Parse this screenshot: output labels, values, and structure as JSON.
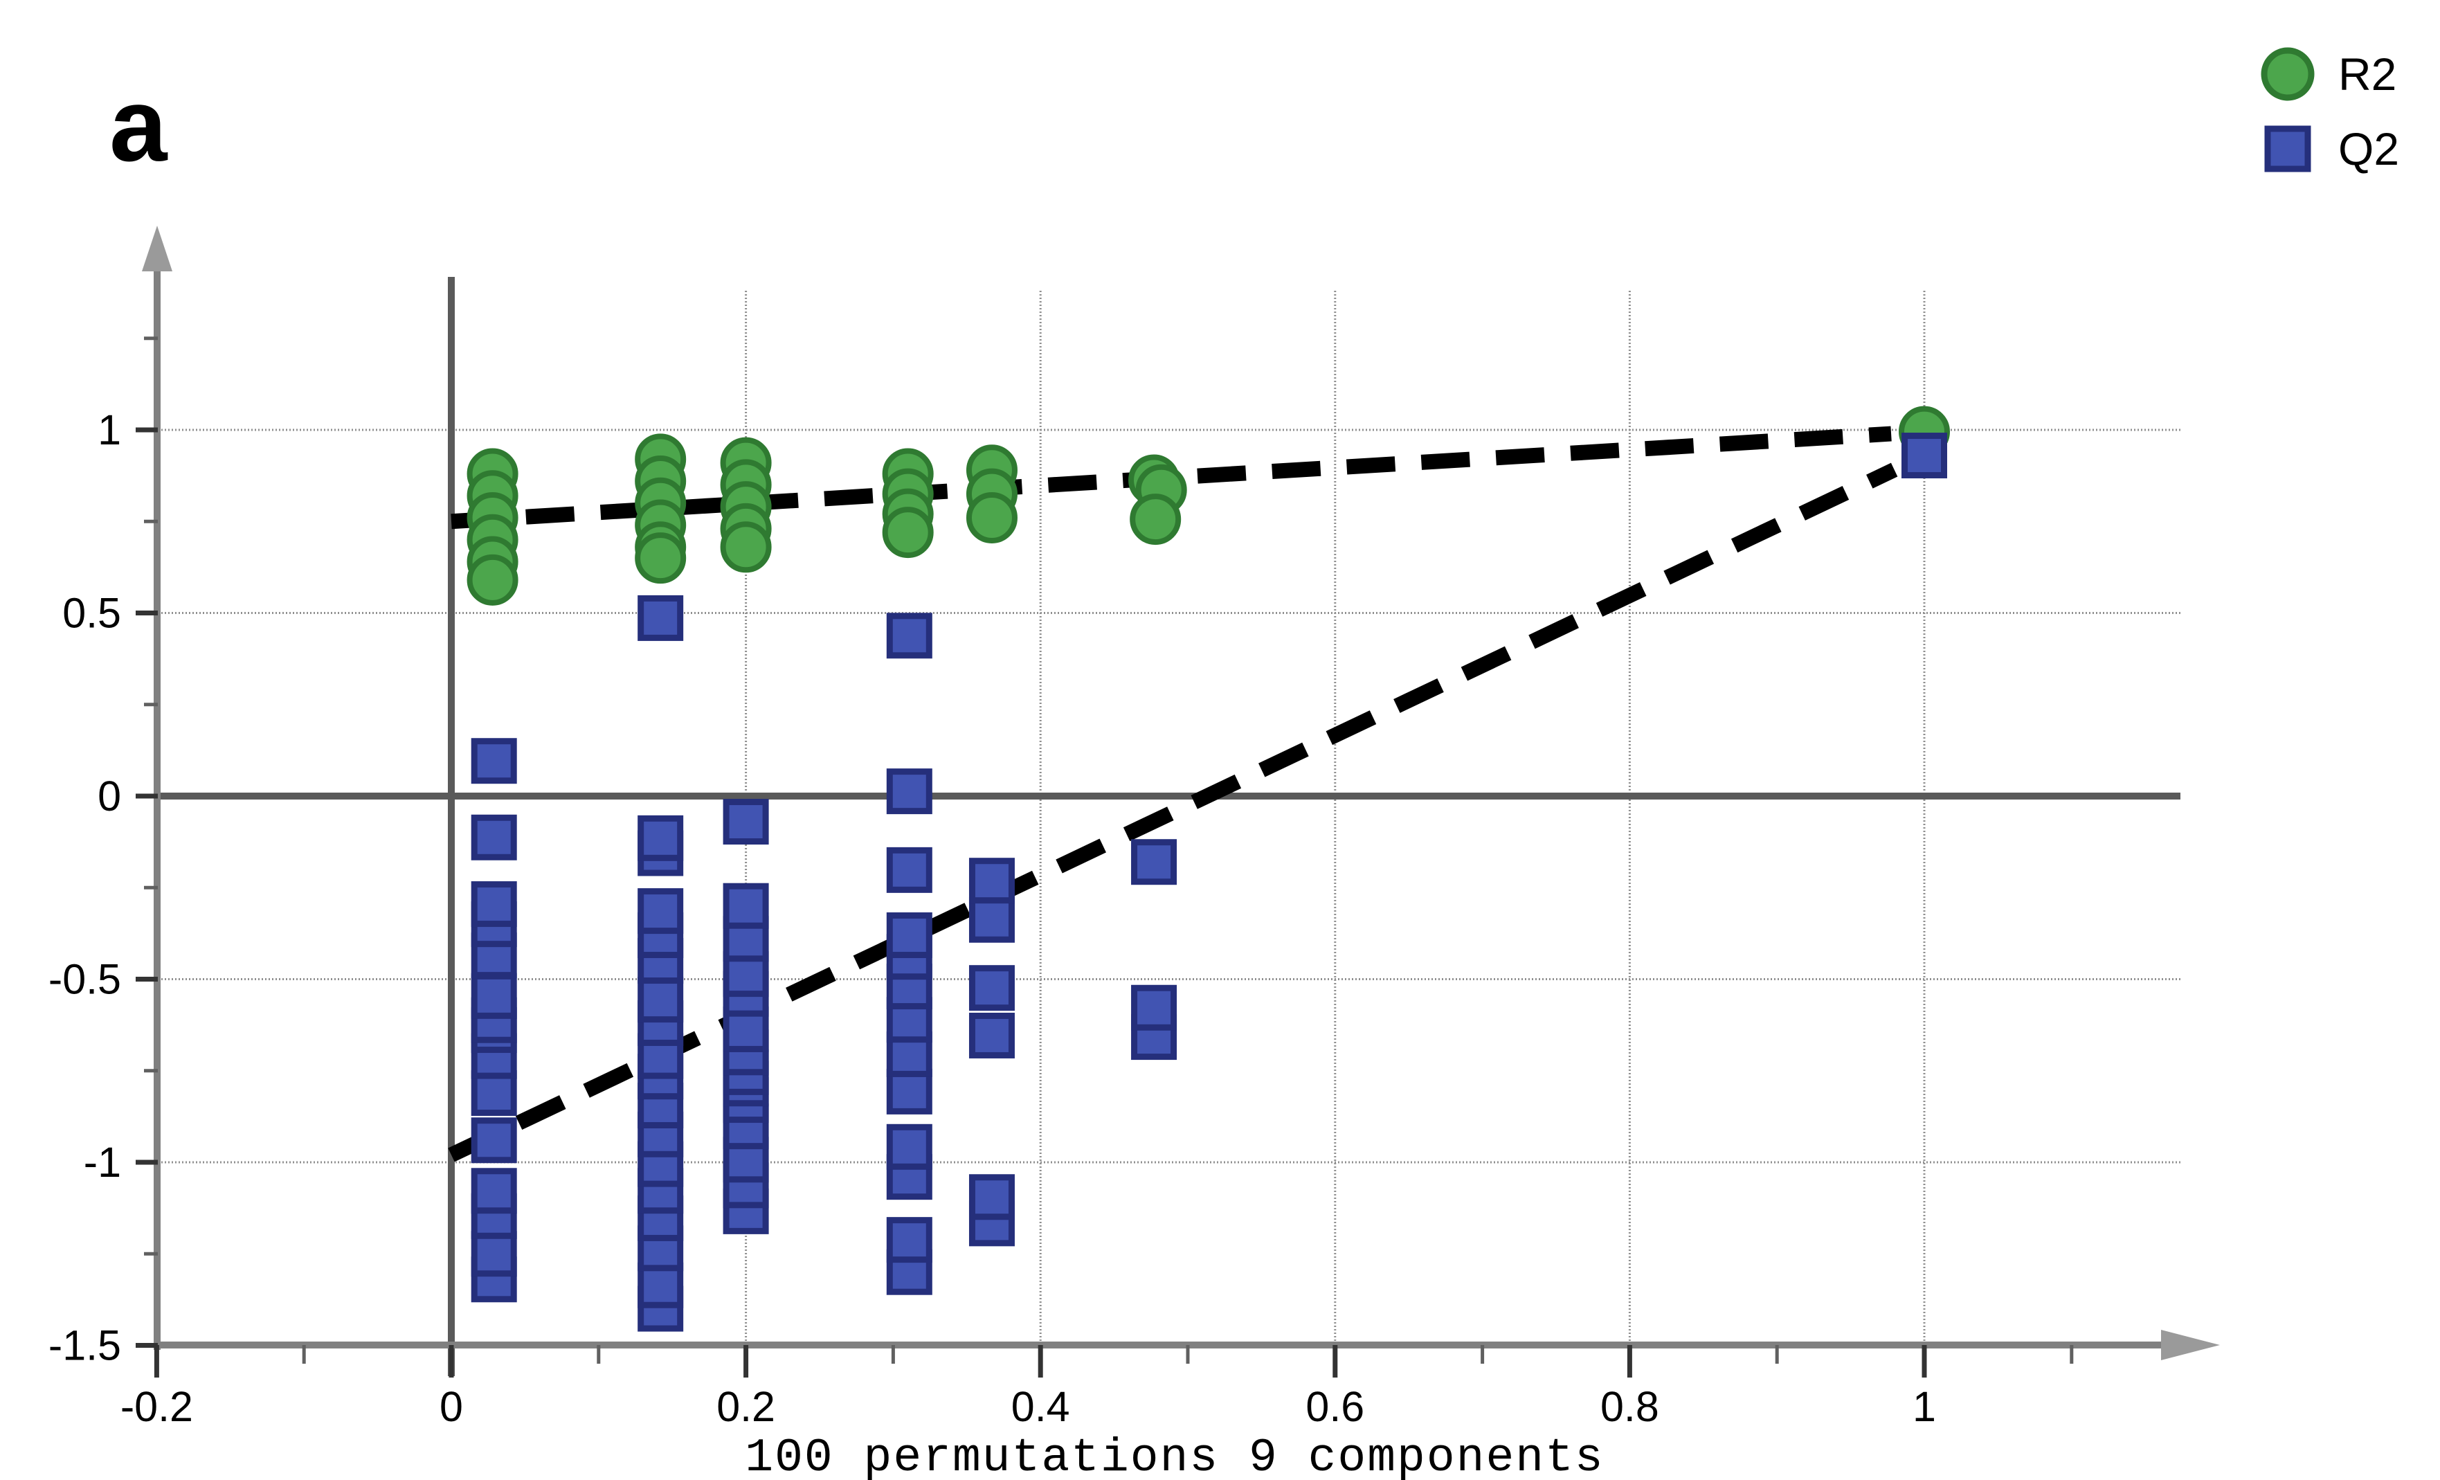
{
  "panel_label": "a",
  "chart_data": {
    "type": "scatter",
    "xlabel": "100 permutations 9 components",
    "x_tick_labels": [
      "-0.2",
      "0",
      "0.2",
      "0.4",
      "0.6",
      "0.8",
      "1"
    ],
    "x_ticks_major": [
      -0.2,
      0,
      0.2,
      0.4,
      0.6,
      0.8,
      1
    ],
    "x_ticks_minor": [
      -0.1,
      0.1,
      0.3,
      0.5,
      0.7,
      0.9,
      1.1
    ],
    "y_tick_labels": [
      "1",
      "0.5",
      "0",
      "-0.5",
      "-1",
      "-1.5"
    ],
    "y_ticks_major": [
      1,
      0.5,
      0,
      -0.5,
      -1,
      -1.5
    ],
    "y_ticks_minor": [
      1.25,
      0.75,
      0.25,
      -0.25,
      -0.75,
      -1.25
    ],
    "xlim": [
      -0.2,
      1.163
    ],
    "ylim": [
      -1.5,
      1.44
    ],
    "grid_x": [
      0.2,
      0.4,
      0.6,
      0.8,
      1.0
    ],
    "grid_y": [
      1,
      0.5,
      -0.5,
      -1
    ],
    "zero_x_line": 0,
    "zero_y_line": 0,
    "colors": {
      "r2_fill": "#4CA64C",
      "r2_edge": "#2F7A31",
      "q2_fill": "#4154B2",
      "q2_edge": "#252F7B",
      "trend": "#000000",
      "grid": "#8f8f8f",
      "axis": "#808080",
      "zero_line": "#5a5a5a",
      "arrow": "#9a9a9a",
      "tick_major": "#333333",
      "tick_minor": "#606060"
    },
    "legend": {
      "items": [
        "R2",
        "Q2"
      ]
    },
    "series": [
      {
        "name": "R2",
        "marker": "circle",
        "points": [
          [
            0.028,
            0.88
          ],
          [
            0.028,
            0.82
          ],
          [
            0.028,
            0.76
          ],
          [
            0.028,
            0.7
          ],
          [
            0.028,
            0.64
          ],
          [
            0.028,
            0.59
          ],
          [
            0.142,
            0.92
          ],
          [
            0.142,
            0.86
          ],
          [
            0.142,
            0.8
          ],
          [
            0.142,
            0.74
          ],
          [
            0.142,
            0.68
          ],
          [
            0.142,
            0.65
          ],
          [
            0.2,
            0.91
          ],
          [
            0.2,
            0.85
          ],
          [
            0.2,
            0.79
          ],
          [
            0.2,
            0.73
          ],
          [
            0.2,
            0.68
          ],
          [
            0.31,
            0.88
          ],
          [
            0.31,
            0.825
          ],
          [
            0.31,
            0.77
          ],
          [
            0.31,
            0.72
          ],
          [
            0.367,
            0.89
          ],
          [
            0.367,
            0.825
          ],
          [
            0.367,
            0.76
          ],
          [
            0.477,
            0.863
          ],
          [
            0.482,
            0.836
          ],
          [
            0.478,
            0.756
          ],
          [
            1.0,
            0.995
          ]
        ]
      },
      {
        "name": "Q2",
        "marker": "square",
        "points": [
          [
            0.029,
            0.096
          ],
          [
            0.029,
            -0.113
          ],
          [
            0.029,
            -0.295
          ],
          [
            0.029,
            -0.35
          ],
          [
            0.029,
            -0.435
          ],
          [
            0.029,
            -0.546
          ],
          [
            0.029,
            -0.612
          ],
          [
            0.029,
            -0.639
          ],
          [
            0.029,
            -0.71
          ],
          [
            0.029,
            -0.811
          ],
          [
            0.029,
            -0.94
          ],
          [
            0.029,
            -1.078
          ],
          [
            0.029,
            -1.147
          ],
          [
            0.029,
            -1.25
          ],
          [
            0.029,
            -1.32
          ],
          [
            0.142,
            0.486
          ],
          [
            0.142,
            -0.115
          ],
          [
            0.142,
            -0.156
          ],
          [
            0.142,
            -0.314
          ],
          [
            0.142,
            -0.38
          ],
          [
            0.142,
            -0.45
          ],
          [
            0.142,
            -0.556
          ],
          [
            0.142,
            -0.62
          ],
          [
            0.142,
            -0.71
          ],
          [
            0.142,
            -0.766
          ],
          [
            0.142,
            -0.845
          ],
          [
            0.142,
            -0.924
          ],
          [
            0.142,
            -1.005
          ],
          [
            0.142,
            -1.078
          ],
          [
            0.142,
            -1.153
          ],
          [
            0.142,
            -1.235
          ],
          [
            0.142,
            -1.336
          ],
          [
            0.142,
            -1.4
          ],
          [
            0.2,
            -0.07
          ],
          [
            0.2,
            -0.3
          ],
          [
            0.2,
            -0.39
          ],
          [
            0.2,
            -0.486
          ],
          [
            0.2,
            -0.54
          ],
          [
            0.2,
            -0.637
          ],
          [
            0.2,
            -0.7
          ],
          [
            0.2,
            -0.754
          ],
          [
            0.2,
            -0.785
          ],
          [
            0.2,
            -0.83
          ],
          [
            0.2,
            -0.902
          ],
          [
            0.2,
            -0.993
          ],
          [
            0.2,
            -1.063
          ],
          [
            0.2,
            -1.134
          ],
          [
            0.311,
            0.438
          ],
          [
            0.311,
            0.013
          ],
          [
            0.311,
            -0.202
          ],
          [
            0.311,
            -0.38
          ],
          [
            0.311,
            -0.439
          ],
          [
            0.311,
            -0.52
          ],
          [
            0.311,
            -0.611
          ],
          [
            0.311,
            -0.705
          ],
          [
            0.311,
            -0.807
          ],
          [
            0.311,
            -0.958
          ],
          [
            0.311,
            -1.04
          ],
          [
            0.311,
            -1.212
          ],
          [
            0.311,
            -1.3
          ],
          [
            0.367,
            -0.231
          ],
          [
            0.367,
            -0.338
          ],
          [
            0.367,
            -0.524
          ],
          [
            0.367,
            -0.654
          ],
          [
            0.367,
            -1.095
          ],
          [
            0.367,
            -1.167
          ],
          [
            0.477,
            -0.18
          ],
          [
            0.477,
            -0.578
          ],
          [
            0.477,
            -0.658
          ],
          [
            1.0,
            0.93
          ]
        ]
      }
    ],
    "trend_lines": [
      {
        "series": "R2",
        "from": [
          0,
          0.75
        ],
        "to": [
          1,
          0.995
        ]
      },
      {
        "series": "Q2",
        "from": [
          0,
          -0.98
        ],
        "to": [
          1,
          0.93
        ]
      }
    ]
  }
}
